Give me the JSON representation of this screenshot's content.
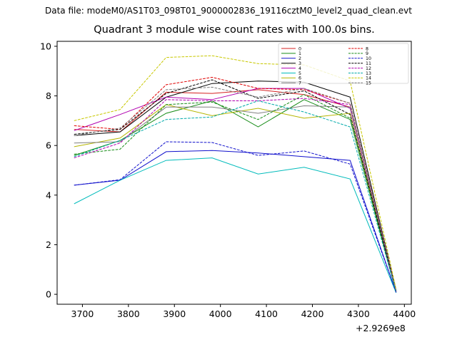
{
  "header": {
    "suptitle": "Data file: modeM0/AS1T03_098T01_9000002836_19116cztM0_level2_quad_clean.evt",
    "title": "Quadrant 3 module wise count rates with 100.0s bins.",
    "x_offset_label": "+2.9269e8"
  },
  "chart_data": {
    "type": "line",
    "title": "Quadrant 3 module wise count rates with 100.0s bins.",
    "xlabel": "",
    "ylabel": "",
    "x_offset": 292690000,
    "xlim": [
      3645,
      4415
    ],
    "ylim": [
      -0.4,
      10.2
    ],
    "x_ticks": [
      3700,
      3800,
      3900,
      4000,
      4100,
      4200,
      4300,
      4400
    ],
    "y_ticks": [
      0,
      2,
      4,
      6,
      8,
      10
    ],
    "legend_position": "top-right",
    "x": [
      3682,
      3782,
      3882,
      3982,
      4082,
      4182,
      4282,
      4382
    ],
    "series": [
      {
        "name": "0",
        "color": "#d62020",
        "dash": "solid",
        "values": [
          6.65,
          6.55,
          8.15,
          8.1,
          8.25,
          8.05,
          7.55,
          0.12
        ]
      },
      {
        "name": "1",
        "color": "#178c17",
        "dash": "solid",
        "values": [
          5.6,
          6.2,
          7.3,
          7.8,
          6.75,
          7.85,
          7.05,
          0.1
        ]
      },
      {
        "name": "2",
        "color": "#1010cc",
        "dash": "solid",
        "values": [
          4.4,
          4.6,
          5.75,
          5.8,
          5.7,
          5.55,
          5.4,
          0.08
        ]
      },
      {
        "name": "3",
        "color": "#000000",
        "dash": "solid",
        "values": [
          6.4,
          6.55,
          7.95,
          8.5,
          8.6,
          8.55,
          7.95,
          0.15
        ]
      },
      {
        "name": "4",
        "color": "#b000b0",
        "dash": "solid",
        "values": [
          6.6,
          7.25,
          7.95,
          7.85,
          8.3,
          8.3,
          7.5,
          0.12
        ]
      },
      {
        "name": "5",
        "color": "#00bbbb",
        "dash": "solid",
        "values": [
          3.65,
          4.6,
          5.4,
          5.5,
          4.85,
          5.12,
          4.65,
          0.06
        ]
      },
      {
        "name": "6",
        "color": "#b5b500",
        "dash": "solid",
        "values": [
          5.95,
          6.3,
          7.65,
          7.2,
          7.5,
          7.1,
          7.3,
          0.1
        ]
      },
      {
        "name": "7",
        "color": "#808080",
        "dash": "solid",
        "values": [
          6.1,
          6.15,
          7.55,
          7.55,
          7.3,
          7.6,
          7.55,
          0.11
        ]
      },
      {
        "name": "8",
        "color": "#e00000",
        "dash": "dashed",
        "values": [
          6.8,
          6.65,
          8.45,
          8.75,
          8.3,
          8.25,
          7.7,
          0.14
        ]
      },
      {
        "name": "9",
        "color": "#178c17",
        "dash": "dashed",
        "values": [
          5.65,
          5.85,
          7.65,
          7.75,
          7.05,
          8.05,
          7.1,
          0.1
        ]
      },
      {
        "name": "10",
        "color": "#1010cc",
        "dash": "dashed",
        "values": [
          4.4,
          4.62,
          6.15,
          6.12,
          5.6,
          5.78,
          5.25,
          0.08
        ]
      },
      {
        "name": "11",
        "color": "#000000",
        "dash": "dashed",
        "values": [
          6.45,
          6.65,
          8.1,
          8.65,
          7.9,
          8.2,
          7.25,
          0.13
        ]
      },
      {
        "name": "12",
        "color": "#b000b0",
        "dash": "dashed",
        "values": [
          5.5,
          6.1,
          7.85,
          7.8,
          7.8,
          7.9,
          7.65,
          0.12
        ]
      },
      {
        "name": "13",
        "color": "#00aaaa",
        "dash": "dashed",
        "values": [
          5.55,
          6.2,
          7.05,
          7.15,
          7.8,
          7.35,
          6.75,
          0.09
        ]
      },
      {
        "name": "14",
        "color": "#c8c800",
        "dash": "dashed",
        "values": [
          7.0,
          7.45,
          9.55,
          9.62,
          9.3,
          9.25,
          8.6,
          0.2
        ]
      },
      {
        "name": "15",
        "color": "#808080",
        "dash": "dashed",
        "values": [
          6.4,
          6.7,
          8.25,
          8.35,
          7.95,
          8.3,
          7.7,
          0.14
        ]
      }
    ]
  }
}
